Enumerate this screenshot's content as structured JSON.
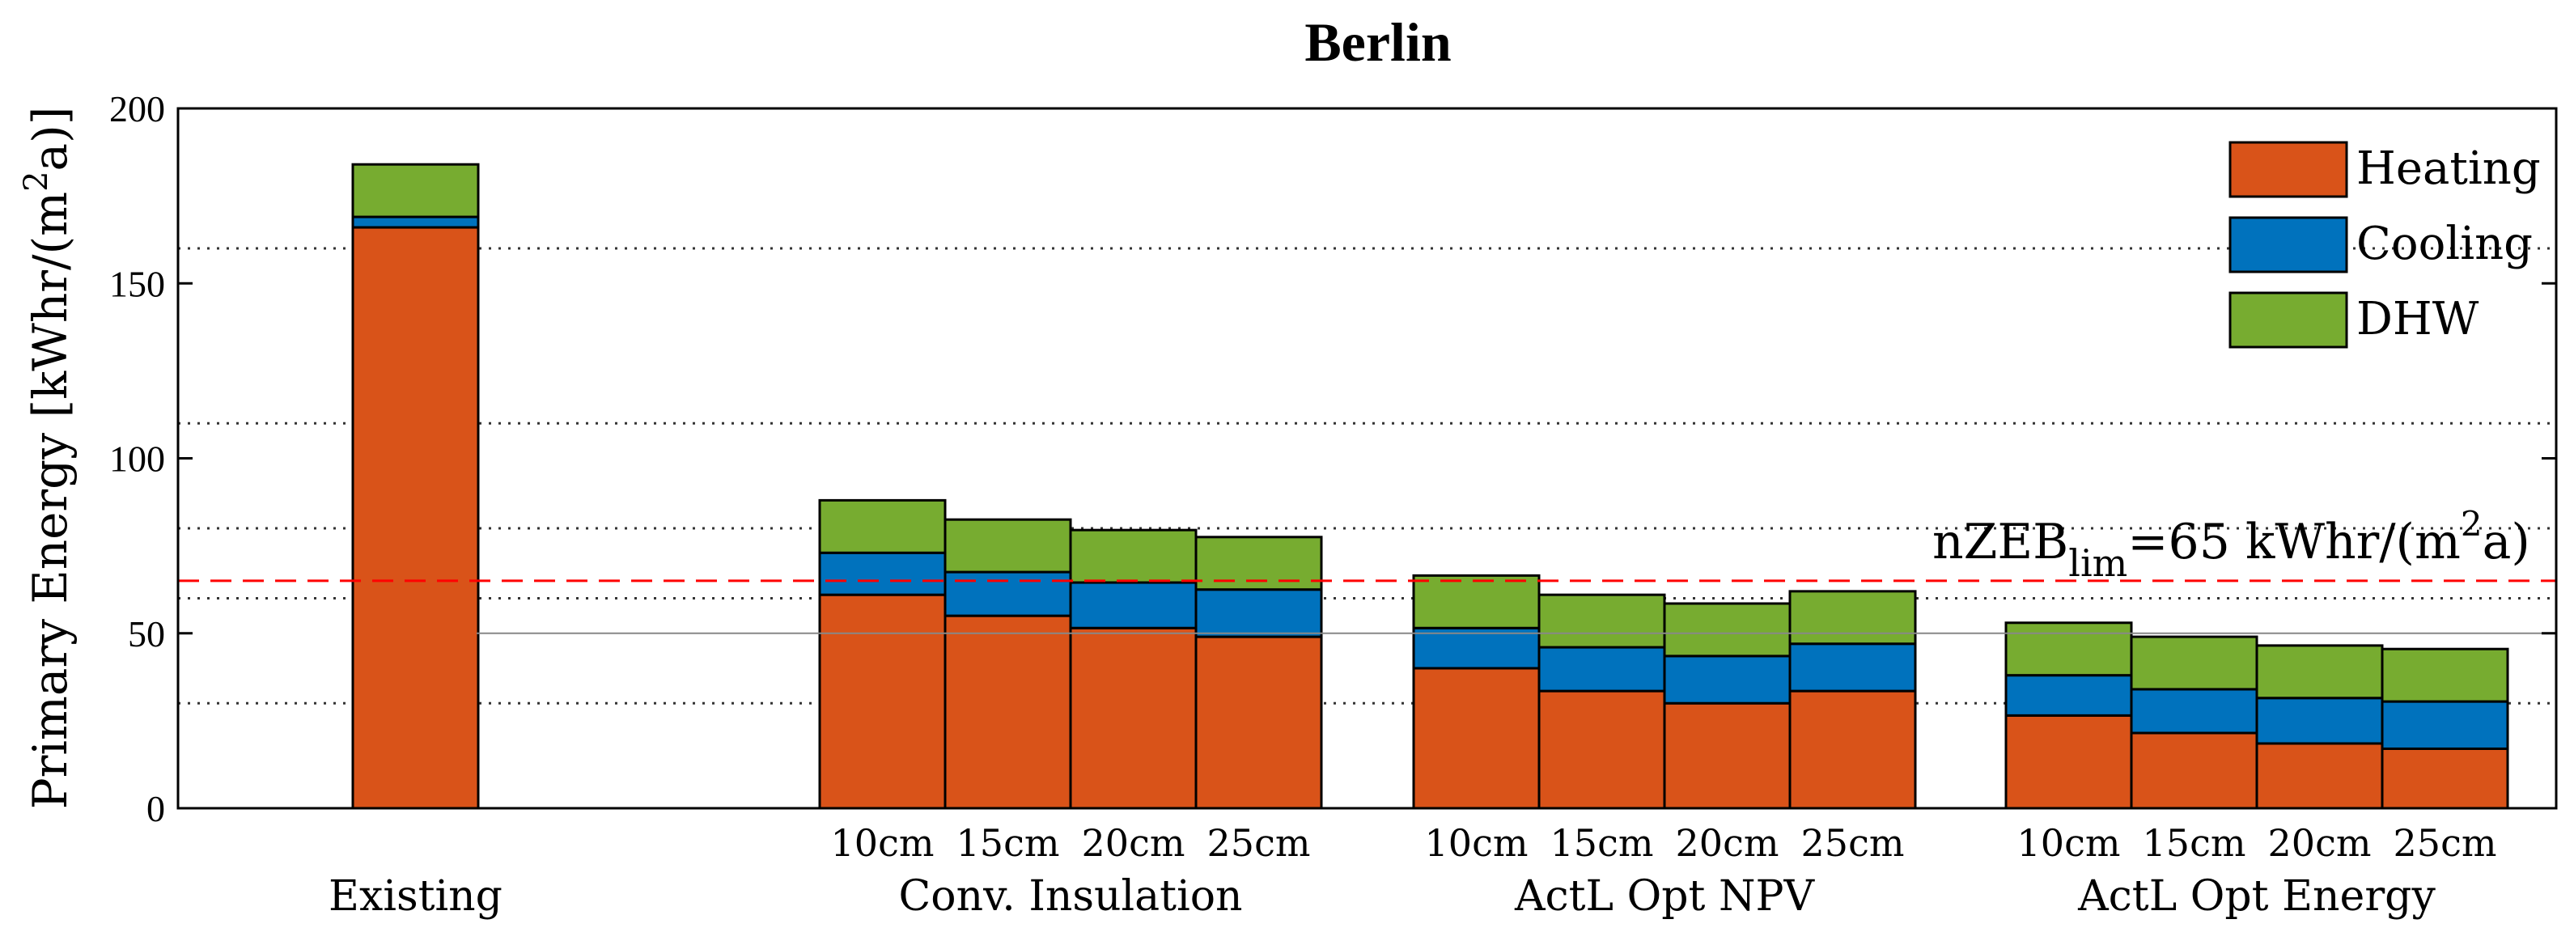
{
  "chart_data": {
    "type": "bar",
    "stacked": true,
    "title": "Berlin",
    "ylabel": "Primary Energy [kWhr/(m^2a)]",
    "ylabel_parts": {
      "main": "Primary Energy [kWhr/(m",
      "sup": "2",
      "tail": "a)]"
    },
    "ylim": [
      0,
      200
    ],
    "yticks": [
      "0",
      "50",
      "100",
      "150",
      "200"
    ],
    "ytick_values": [
      0,
      50,
      100,
      150,
      200
    ],
    "dotted_gridlines": [
      30,
      60,
      80,
      110,
      160
    ],
    "solid_reference_line": 50,
    "limit_line": {
      "value": 65,
      "color": "#ff0000",
      "label_main": "nZEB",
      "label_sub": "lim",
      "label_eq": "=65 kWhr/(m",
      "label_sup": "2",
      "label_tail": "a)"
    },
    "groups": [
      {
        "name": "Existing",
        "bars": [
          {
            "label": "",
            "values": [
              166,
              3,
              15
            ]
          }
        ]
      },
      {
        "name": "Conv. Insulation",
        "bars": [
          {
            "label": "10cm",
            "values": [
              61,
              12,
              15
            ]
          },
          {
            "label": "15cm",
            "values": [
              55,
              12.5,
              15
            ]
          },
          {
            "label": "20cm",
            "values": [
              51.5,
              13,
              15
            ]
          },
          {
            "label": "25cm",
            "values": [
              49,
              13.5,
              15
            ]
          }
        ]
      },
      {
        "name": "ActL Opt NPV",
        "bars": [
          {
            "label": "10cm",
            "values": [
              40,
              11.5,
              15
            ]
          },
          {
            "label": "15cm",
            "values": [
              33.5,
              12.5,
              15
            ]
          },
          {
            "label": "20cm",
            "values": [
              30,
              13.5,
              15
            ]
          },
          {
            "label": "25cm",
            "values": [
              33.5,
              13.5,
              15
            ]
          }
        ]
      },
      {
        "name": "ActL Opt Energy",
        "bars": [
          {
            "label": "10cm",
            "values": [
              26.5,
              11.5,
              15
            ]
          },
          {
            "label": "15cm",
            "values": [
              21.5,
              12.5,
              15
            ]
          },
          {
            "label": "20cm",
            "values": [
              18.5,
              13,
              15
            ]
          },
          {
            "label": "25cm",
            "values": [
              17,
              13.5,
              15
            ]
          }
        ]
      }
    ],
    "series": [
      {
        "name": "Heating",
        "color": "#D95319"
      },
      {
        "name": "Cooling",
        "color": "#0072BD"
      },
      {
        "name": "DHW",
        "color": "#77AC30"
      }
    ],
    "legend_position": "top-right"
  }
}
